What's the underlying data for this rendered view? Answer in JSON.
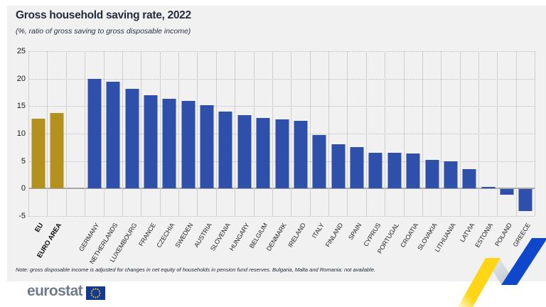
{
  "header": {
    "title": "Gross household saving rate, 2022",
    "subtitle": "(%, ratio of gross saving to gross disposable income)"
  },
  "chart_data": {
    "type": "bar",
    "title": "Gross household saving rate, 2022",
    "subtitle": "(%, ratio of gross saving to gross disposable income)",
    "unit": "%",
    "xlabel": "",
    "ylabel": "",
    "ylim": [
      -5,
      25
    ],
    "yticks": [
      25,
      20,
      15,
      10,
      5,
      0,
      -5
    ],
    "grid": "horizontal dotted lines, vertical solid column separators, solid zero line",
    "legend": "none",
    "gap_after_index": 1,
    "highlight_count": 2,
    "highlight_color": "#b2921c",
    "bar_color": "#2e50aa",
    "categories": [
      "EU",
      "EURO AREA",
      "GERMANY",
      "NETHERLANDS",
      "LUXEMBOURG",
      "FRANCE",
      "CZECHIA",
      "SWEDEN",
      "AUSTRIA",
      "SLOVENIA",
      "HUNGARY",
      "BELGIUM",
      "DENMARK",
      "IRELAND",
      "ITALY",
      "FINLAND",
      "SPAIN",
      "CYPRUS",
      "PORTUGAL",
      "CROATIA",
      "SLOVAKIA",
      "LITHUANIA",
      "LATVIA",
      "ESTONIA",
      "POLAND",
      "GREECE"
    ],
    "values": [
      12.7,
      13.7,
      19.9,
      19.4,
      18.1,
      17.0,
      16.3,
      15.9,
      15.2,
      14.0,
      13.4,
      12.9,
      12.6,
      12.3,
      9.7,
      8.0,
      7.5,
      6.5,
      6.5,
      6.4,
      5.2,
      4.9,
      3.5,
      0.3,
      -1.0,
      -4.0
    ]
  },
  "note": {
    "text": "Note: gross disposable income is adjusted for changes in net equity of households in pension fund reserves. Bulgaria, Malta and Romania: not available."
  },
  "footer": {
    "brand": "eurostat",
    "flag_icon": "eu-flag",
    "flag_color": "#123a94",
    "star_color": "#ffcc00"
  },
  "colors": {
    "panel_background": "#f1f1f2",
    "page_background": "#ffffff",
    "text_dark_navy": "#262c3e",
    "zigzag_yellow": "#ffd617",
    "zigzag_gray": "#c7cbd1",
    "zigzag_blue": "#0e47cb"
  }
}
